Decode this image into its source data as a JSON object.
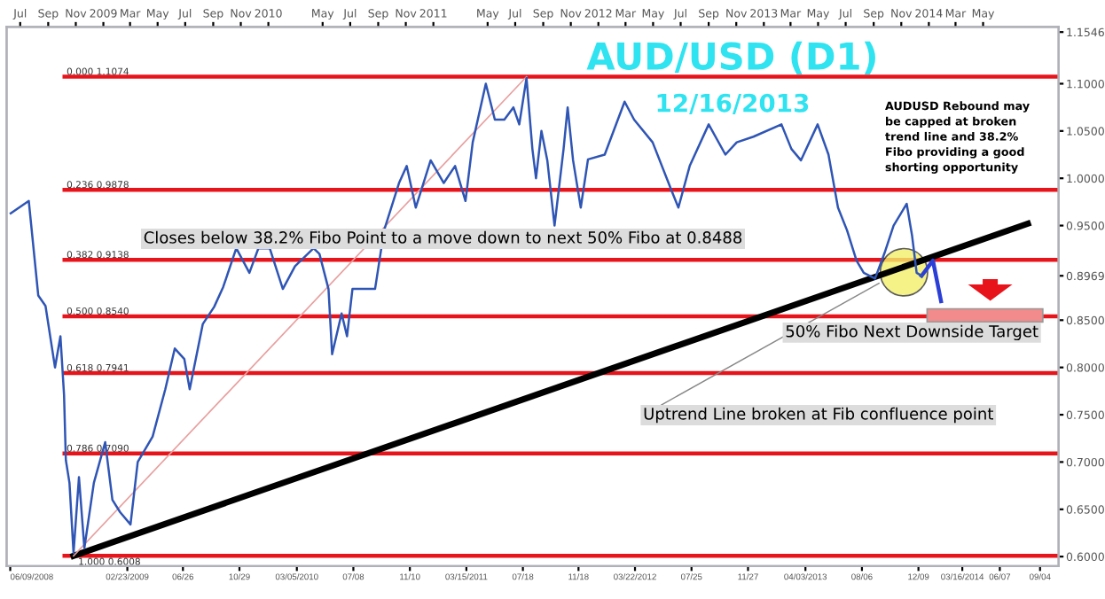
{
  "chart_data": {
    "type": "line",
    "title": "AUD/USD (D1)",
    "subtitle": "12/16/2013",
    "xlim": [
      "2008-06-01",
      "2014-10-15"
    ],
    "ylim": [
      0.59,
      1.16
    ],
    "xticks": [
      {
        "value": "2008-06-09",
        "label": "06/09/2008"
      },
      {
        "value": "2009-02-23",
        "label": "02/23/2009"
      },
      {
        "value": "2009-06-26",
        "label": "06/26"
      },
      {
        "value": "2009-10-29",
        "label": "10/29"
      },
      {
        "value": "2010-03-05",
        "label": "03/05/2010"
      },
      {
        "value": "2010-07-08",
        "label": "07/08"
      },
      {
        "value": "2010-11-10",
        "label": "11/10"
      },
      {
        "value": "2011-03-15",
        "label": "03/15/2011"
      },
      {
        "value": "2011-07-18",
        "label": "07/18"
      },
      {
        "value": "2011-11-18",
        "label": "11/18"
      },
      {
        "value": "2012-03-22",
        "label": "03/22/2012"
      },
      {
        "value": "2012-07-25",
        "label": "07/25"
      },
      {
        "value": "2012-11-27",
        "label": "11/27"
      },
      {
        "value": "2013-04-03",
        "label": "04/03/2013"
      },
      {
        "value": "2013-08-06",
        "label": "08/06"
      },
      {
        "value": "2013-12-09",
        "label": "12/09"
      },
      {
        "value": "2014-03-16",
        "label": "03/16/2014"
      },
      {
        "value": "2014-06-07",
        "label": "06/07"
      },
      {
        "value": "2014-09-04",
        "label": "09/04"
      }
    ],
    "x2lim": [
      "2008-06-01",
      "2014-10-15"
    ],
    "x2ticks": [
      {
        "value": "2008-07-01",
        "label": "Jul"
      },
      {
        "value": "2008-09-01",
        "label": "Sep"
      },
      {
        "value": "2008-11-01",
        "label": "Nov"
      },
      {
        "value": "2009-01-01",
        "label": "2009"
      },
      {
        "value": "2009-03-01",
        "label": "Mar"
      },
      {
        "value": "2009-05-01",
        "label": "May"
      },
      {
        "value": "2009-07-01",
        "label": "Jul"
      },
      {
        "value": "2009-09-01",
        "label": "Sep"
      },
      {
        "value": "2009-11-01",
        "label": "Nov"
      },
      {
        "value": "2010-01-01",
        "label": "2010"
      },
      {
        "value": "2010-05-01",
        "label": "May"
      },
      {
        "value": "2010-07-01",
        "label": "Jul"
      },
      {
        "value": "2010-09-01",
        "label": "Sep"
      },
      {
        "value": "2010-11-01",
        "label": "Nov"
      },
      {
        "value": "2011-01-01",
        "label": "2011"
      },
      {
        "value": "2011-05-01",
        "label": "May"
      },
      {
        "value": "2011-07-01",
        "label": "Jul"
      },
      {
        "value": "2011-09-01",
        "label": "Sep"
      },
      {
        "value": "2011-11-01",
        "label": "Nov"
      },
      {
        "value": "2012-01-01",
        "label": "2012"
      },
      {
        "value": "2012-03-01",
        "label": "Mar"
      },
      {
        "value": "2012-05-01",
        "label": "May"
      },
      {
        "value": "2012-07-01",
        "label": "Jul"
      },
      {
        "value": "2012-09-01",
        "label": "Sep"
      },
      {
        "value": "2012-11-01",
        "label": "Nov"
      },
      {
        "value": "2013-01-01",
        "label": "2013"
      },
      {
        "value": "2013-03-01",
        "label": "Mar"
      },
      {
        "value": "2013-05-01",
        "label": "May"
      },
      {
        "value": "2013-07-01",
        "label": "Jul"
      },
      {
        "value": "2013-09-01",
        "label": "Sep"
      },
      {
        "value": "2013-11-01",
        "label": "Nov"
      },
      {
        "value": "2014-01-01",
        "label": "2014"
      },
      {
        "value": "2014-03-01",
        "label": "Mar"
      },
      {
        "value": "2014-05-01",
        "label": "May"
      }
    ],
    "yticks": [
      {
        "value": 0.6,
        "label": "0.6000"
      },
      {
        "value": 0.65,
        "label": "0.6500"
      },
      {
        "value": 0.7,
        "label": "0.7000"
      },
      {
        "value": 0.75,
        "label": "0.7500"
      },
      {
        "value": 0.8,
        "label": "0.8000"
      },
      {
        "value": 0.85,
        "label": "0.8500"
      },
      {
        "value": 0.8969,
        "label": "0.8969"
      },
      {
        "value": 0.95,
        "label": "0.9500"
      },
      {
        "value": 1.0,
        "label": "1.0000"
      },
      {
        "value": 1.05,
        "label": "1.0500"
      },
      {
        "value": 1.1,
        "label": "1.1000"
      },
      {
        "value": 1.1546,
        "label": "1.1546"
      }
    ],
    "grid": false,
    "legend": false,
    "series": [
      {
        "color": "#2f55b5",
        "x": [
          "2008-06-10",
          "2008-07-20",
          "2008-08-10",
          "2008-08-26",
          "2008-09-16",
          "2008-09-28",
          "2008-10-06",
          "2008-10-10",
          "2008-10-18",
          "2008-10-27",
          "2008-11-08",
          "2008-11-20",
          "2008-12-11",
          "2009-01-05",
          "2009-01-21",
          "2009-02-07",
          "2009-03-02",
          "2009-03-18",
          "2009-04-20",
          "2009-05-18",
          "2009-06-08",
          "2009-06-29",
          "2009-07-11",
          "2009-08-09",
          "2009-09-03",
          "2009-09-23",
          "2009-10-22",
          "2009-11-20",
          "2009-12-10",
          "2010-01-04",
          "2010-02-02",
          "2010-03-01",
          "2010-04-11",
          "2010-04-24",
          "2010-05-14",
          "2010-05-22",
          "2010-06-12",
          "2010-06-24",
          "2010-07-06",
          "2010-07-27",
          "2010-08-25",
          "2010-09-14",
          "2010-10-17",
          "2010-11-03",
          "2010-11-23",
          "2010-12-26",
          "2011-01-24",
          "2011-02-18",
          "2011-03-13",
          "2011-03-29",
          "2011-04-27",
          "2011-05-17",
          "2011-06-07",
          "2011-06-27",
          "2011-07-10",
          "2011-07-26",
          "2011-08-08",
          "2011-08-16",
          "2011-08-28",
          "2011-09-10",
          "2011-09-26",
          "2011-10-16",
          "2011-10-25",
          "2011-11-06",
          "2011-11-23",
          "2011-12-09",
          "2012-01-15",
          "2012-02-28",
          "2012-03-20",
          "2012-04-30",
          "2012-06-10",
          "2012-06-26",
          "2012-07-21",
          "2012-09-01",
          "2012-10-08",
          "2012-11-02",
          "2012-12-09",
          "2013-02-09",
          "2013-03-03",
          "2013-03-24",
          "2013-04-30",
          "2013-05-24",
          "2013-06-14",
          "2013-07-04",
          "2013-07-25",
          "2013-08-10",
          "2013-09-04",
          "2013-09-25",
          "2013-10-15",
          "2013-11-13",
          "2013-11-25",
          "2013-12-05",
          "2013-12-16"
        ],
        "values": [
          0.963,
          0.976,
          0.876,
          0.865,
          0.8,
          0.833,
          0.771,
          0.702,
          0.678,
          0.604,
          0.684,
          0.609,
          0.678,
          0.721,
          0.66,
          0.647,
          0.634,
          0.7,
          0.727,
          0.777,
          0.82,
          0.809,
          0.777,
          0.846,
          0.864,
          0.885,
          0.926,
          0.9,
          0.926,
          0.926,
          0.883,
          0.907,
          0.926,
          0.92,
          0.883,
          0.814,
          0.857,
          0.833,
          0.883,
          0.883,
          0.883,
          0.945,
          0.995,
          1.013,
          0.969,
          1.019,
          0.995,
          1.013,
          0.976,
          1.038,
          1.1,
          1.062,
          1.062,
          1.075,
          1.057,
          1.106,
          1.031,
          1.0,
          1.05,
          1.019,
          0.95,
          1.031,
          1.075,
          1.019,
          0.969,
          1.02,
          1.025,
          1.081,
          1.062,
          1.038,
          0.988,
          0.969,
          1.013,
          1.057,
          1.025,
          1.038,
          1.044,
          1.057,
          1.031,
          1.019,
          1.057,
          1.025,
          0.969,
          0.945,
          0.913,
          0.9,
          0.894,
          0.921,
          0.95,
          0.973,
          0.939,
          0.9,
          0.8969
        ]
      },
      {
        "color": "#000000",
        "x": [
          "2008-10-27",
          "2014-08-08"
        ],
        "values": [
          0.6008,
          0.952
        ]
      },
      {
        "color": "#e8a0a0",
        "x": [
          "2008-10-27",
          "2011-07-26"
        ],
        "values": [
          0.6008,
          1.1074
        ]
      },
      {
        "color": "#2b3fd6",
        "x": [
          "2013-12-16",
          "2014-01-10",
          "2014-01-28"
        ],
        "values": [
          0.8969,
          0.913,
          0.87
        ]
      }
    ],
    "ref_lines": [
      {
        "axis": "y",
        "value": 1.1074,
        "label": "0.000 1.1074",
        "color": "#e8141b"
      },
      {
        "axis": "y",
        "value": 0.9878,
        "label": "0.236 0.9878",
        "color": "#e8141b"
      },
      {
        "axis": "y",
        "value": 0.9138,
        "label": "0.382 0.9138",
        "color": "#e8141b"
      },
      {
        "axis": "y",
        "value": 0.854,
        "label": "0.500 0.8540",
        "color": "#e8141b"
      },
      {
        "axis": "y",
        "value": 0.7941,
        "label": "0.618 0.7941",
        "color": "#e8141b"
      },
      {
        "axis": "y",
        "value": 0.709,
        "label": "0.786 0.7090",
        "color": "#e8141b"
      },
      {
        "axis": "y",
        "value": 0.6008,
        "label": "1.000 0.6008",
        "color": "#e8141b"
      }
    ],
    "bands": [
      {
        "axis": "y",
        "from": 0.848,
        "to": 0.862,
        "color": "#f28b8b"
      }
    ],
    "annotations": [
      "Closes below 38.2% Fibo Point to a move down to next 50% Fibo at 0.8488",
      "AUDUSD Rebound may\nbe capped at broken\ntrend line and 38.2%\nFibo providing a good\nshorting opportunity",
      "50% Fibo Next Downside Target",
      {
        "text": "Uptrend Line broken at Fib confluence point",
        "x": "2013-09-13",
        "y": 0.889
      }
    ]
  }
}
